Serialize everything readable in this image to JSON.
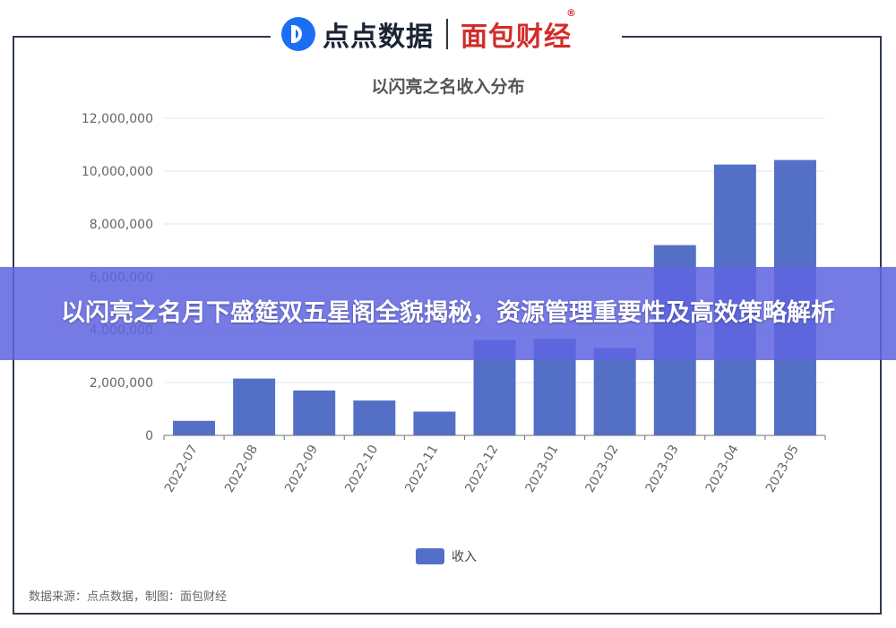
{
  "brand": {
    "logo_left": "点点数据",
    "logo_right": "面包财经",
    "registered_mark": "®"
  },
  "chart_data": {
    "type": "bar",
    "title": "以闪亮之名收入分布",
    "categories": [
      "2022-07",
      "2022-08",
      "2022-09",
      "2022-10",
      "2022-11",
      "2022-12",
      "2023-01",
      "2023-02",
      "2023-03",
      "2023-04",
      "2023-05"
    ],
    "series": [
      {
        "name": "收入",
        "values": [
          550000,
          2150000,
          1700000,
          1320000,
          900000,
          3600000,
          3650000,
          3300000,
          7200000,
          10250000,
          10420000
        ],
        "color": "#5470c6"
      }
    ],
    "y_ticks": [
      "0",
      "2,000,000",
      "4,000,000",
      "6,000,000",
      "8,000,000",
      "10,000,000",
      "12,000,000"
    ],
    "ylim": [
      0,
      12000000
    ],
    "grid": true,
    "legend_position": "bottom-center"
  },
  "footer": {
    "source": "数据来源：点点数据，制图：面包财经"
  },
  "banner": {
    "headline": "以闪亮之名月下盛筵双五星阁全貌揭秘，资源管理重要性及高效策略解析"
  }
}
